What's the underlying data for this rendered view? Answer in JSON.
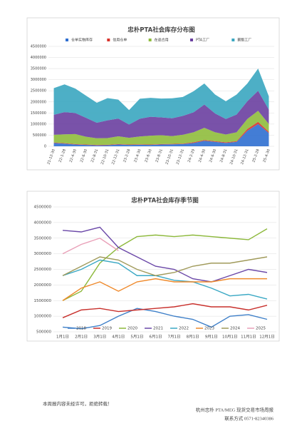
{
  "chart_data": [
    {
      "type": "area",
      "title": "忠朴PTA社会库存分布图",
      "categories": [
        "21-12-30",
        "22-1-28",
        "22-4-30",
        "22-6-30",
        "22-8-31",
        "22-10-31",
        "22-12-31",
        "23-2-28",
        "23-4-30",
        "23-6-30",
        "23-8-31",
        "23-10-31",
        "23-12-31",
        "24-2-29",
        "24-4-30",
        "24-6-30",
        "24-8-31",
        "24-10-31",
        "24-12-31",
        "25-2-28",
        "25-4-30"
      ],
      "series": [
        {
          "name": "仓单实物库存",
          "color": "#2f6fd0",
          "values": [
            150000,
            120000,
            80000,
            60000,
            40000,
            50000,
            80000,
            60000,
            70000,
            60000,
            80000,
            90000,
            100000,
            150000,
            250000,
            200000,
            150000,
            200000,
            700000,
            1000000,
            600000
          ]
        },
        {
          "name": "信用仓单",
          "color": "#d8322b",
          "values": [
            20000,
            20000,
            20000,
            20000,
            20000,
            20000,
            20000,
            20000,
            20000,
            20000,
            20000,
            20000,
            20000,
            30000,
            30000,
            30000,
            30000,
            30000,
            80000,
            100000,
            50000
          ]
        },
        {
          "name": "在途合用",
          "color": "#8fbc3c",
          "values": [
            350000,
            400000,
            450000,
            350000,
            300000,
            300000,
            350000,
            300000,
            350000,
            400000,
            400000,
            350000,
            400000,
            450000,
            550000,
            400000,
            350000,
            400000,
            450000,
            500000,
            350000
          ]
        },
        {
          "name": "PTA工厂",
          "color": "#6a3fa0",
          "values": [
            900000,
            1000000,
            950000,
            850000,
            700000,
            800000,
            800000,
            600000,
            800000,
            850000,
            800000,
            800000,
            850000,
            900000,
            1050000,
            850000,
            700000,
            800000,
            800000,
            900000,
            650000
          ]
        },
        {
          "name": "聚酯工厂",
          "color": "#3aa6c0",
          "values": [
            1200000,
            1250000,
            1100000,
            1000000,
            900000,
            1000000,
            850000,
            650000,
            900000,
            850000,
            850000,
            900000,
            850000,
            950000,
            950000,
            850000,
            800000,
            900000,
            800000,
            1000000,
            600000
          ]
        }
      ],
      "ylim": [
        0,
        4500000
      ],
      "yticks": [
        0,
        500000,
        1000000,
        1500000,
        2000000,
        2500000,
        3000000,
        3500000,
        4000000,
        4500000
      ],
      "grid": true
    },
    {
      "type": "line",
      "title": "忠朴PTA社会库存季节图",
      "categories": [
        "1月1日",
        "2月1日",
        "3月1日",
        "4月1日",
        "5月1日",
        "6月1日",
        "7月1日",
        "8月1日",
        "9月1日",
        "10月1日",
        "11月1日",
        "12月1日"
      ],
      "series": [
        {
          "name": "2018",
          "color": "#3e7fc8",
          "values": [
            650000,
            600000,
            700000,
            1000000,
            1250000,
            1150000,
            1000000,
            900000,
            650000,
            1000000,
            1050000,
            900000
          ]
        },
        {
          "name": "2019",
          "color": "#c8302c",
          "values": [
            950000,
            1200000,
            1250000,
            1150000,
            1200000,
            1250000,
            1300000,
            1400000,
            1300000,
            1300000,
            1200000,
            1350000
          ]
        },
        {
          "name": "2020",
          "color": "#8cb83a",
          "values": [
            1500000,
            1800000,
            2700000,
            3200000,
            3550000,
            3600000,
            3550000,
            3600000,
            3550000,
            3500000,
            3450000,
            3800000
          ]
        },
        {
          "name": "2021",
          "color": "#6b48a8",
          "values": [
            3750000,
            3700000,
            3850000,
            3200000,
            2900000,
            2600000,
            2500000,
            2200000,
            2100000,
            2300000,
            2500000,
            2400000
          ]
        },
        {
          "name": "2022",
          "color": "#3aa8c4",
          "values": [
            2300000,
            2500000,
            2800000,
            2700000,
            2300000,
            2300000,
            2150000,
            2100000,
            1900000,
            1650000,
            1700000,
            1550000
          ]
        },
        {
          "name": "2023",
          "color": "#ef8a2c",
          "values": [
            1500000,
            1900000,
            2100000,
            1800000,
            2100000,
            2200000,
            2100000,
            2100000,
            2100000,
            2200000,
            2200000,
            2200000
          ]
        },
        {
          "name": "2024",
          "color": "#a09a5a",
          "values": [
            2300000,
            2600000,
            2900000,
            2800000,
            2500000,
            2300000,
            2400000,
            2600000,
            2700000,
            2700000,
            2800000,
            2900000
          ]
        },
        {
          "name": "2025",
          "color": "#e9a0b8",
          "values": [
            3000000,
            3300000,
            3500000,
            3100000,
            null,
            null,
            null,
            null,
            null,
            null,
            null,
            null
          ]
        }
      ],
      "ylim": [
        500000,
        4500000
      ],
      "yticks": [
        500000,
        1000000,
        1500000,
        2000000,
        2500000,
        3000000,
        3500000,
        4000000,
        4500000
      ],
      "grid": true
    }
  ],
  "footer": {
    "notice": "本周报内容未经许可，拒绝转载！",
    "publisher": "杭州忠朴 PTA/MEG 现货交易市场周报",
    "contact": "联系方式 0571-82340386"
  }
}
